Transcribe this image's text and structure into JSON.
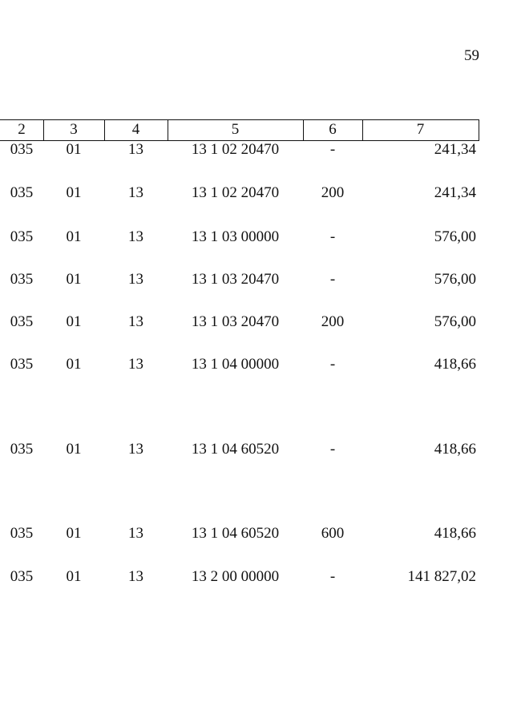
{
  "page_number": "59",
  "table": {
    "header": [
      "2",
      "3",
      "4",
      "5",
      "6",
      "7"
    ],
    "rows": [
      [
        "035",
        "01",
        "13",
        "13 1 02 20470",
        "-",
        "241,34"
      ],
      [
        "035",
        "01",
        "13",
        "13 1 02 20470",
        "200",
        "241,34"
      ],
      [
        "035",
        "01",
        "13",
        "13 1 03 00000",
        "-",
        "576,00"
      ],
      [
        "035",
        "01",
        "13",
        "13 1 03 20470",
        "-",
        "576,00"
      ],
      [
        "035",
        "01",
        "13",
        "13 1 03 20470",
        "200",
        "576,00"
      ],
      [
        "035",
        "01",
        "13",
        "13 1 04 00000",
        "-",
        "418,66"
      ],
      [
        "035",
        "01",
        "13",
        "13 1 04 60520",
        "-",
        "418,66"
      ],
      [
        "035",
        "01",
        "13",
        "13 1 04 60520",
        "600",
        "418,66"
      ],
      [
        "035",
        "01",
        "13",
        "13 2 00 00000",
        "-",
        "141 827,02"
      ]
    ]
  }
}
